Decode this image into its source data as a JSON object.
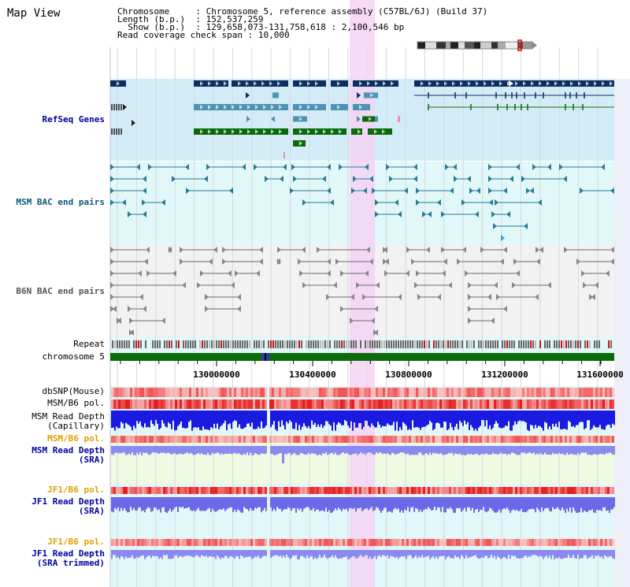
{
  "title": "Map View",
  "info": {
    "chromosome_label": "Chromosome",
    "chromosome_value": "Chromosome 5, reference assembly (C57BL/6J) (Build 37)",
    "length_label": "Length (b.p.)",
    "length_value": "152,537,259",
    "show_label": "Show (b.p.)",
    "show_value": "129,658,073-131,758,618 : 2,100,546 bp",
    "coverage_label": "Read coverage check span",
    "coverage_value": "10,000"
  },
  "tracks": {
    "refseq": "RefSeq Genes",
    "msm_bac": "MSM BAC end pairs",
    "b6n_bac": "B6N BAC end pairs",
    "repeat": "Repeat",
    "chromosome": "chromosome 5",
    "dbsnp": "dbSNP(Mouse)",
    "msm_b6_pol": "MSM/B6 pol.",
    "msm_depth_cap_1": "MSM Read Depth",
    "msm_depth_cap_2": "(Capillary)",
    "msm_b6_pol_sra": "MSM/B6 pol.",
    "msm_depth_sra_1": "MSM Read Depth",
    "msm_depth_sra_2": "(SRA)",
    "jf1_b6_pol": "JF1/B6 pol.",
    "jf1_depth_1": "JF1 Read Depth",
    "jf1_depth_2": "(SRA)",
    "jf1_b6_pol_trim": "JF1/B6 pol.",
    "jf1_trim_1": "JF1 Read Depth",
    "jf1_trim_2": "(SRA trimmed)"
  },
  "axis": {
    "ticks": [
      "130000000",
      "130400000",
      "130800000",
      "131200000",
      "131600000"
    ]
  },
  "colors": {
    "refseq_bg": "#d4ecf8",
    "msm_bg": "#e2f8f8",
    "b6n_bg": "#f2f2f2",
    "highlight": "#f4d4f4",
    "gene_navy": "#0b2f60",
    "gene_blue": "#4f93b4",
    "gene_green": "#0a6a0a",
    "bac_teal": "#2a7a98",
    "bac_gray": "#6a6a6a",
    "chromosome_bar": "#0c6c0c",
    "snp": "#f07070",
    "depth_blue": "#1a1ae0",
    "depth_light": "#8a8af0",
    "label_blue": "#0000a0",
    "label_teal": "#0a5a7a",
    "label_orange": "#e0a000"
  }
}
